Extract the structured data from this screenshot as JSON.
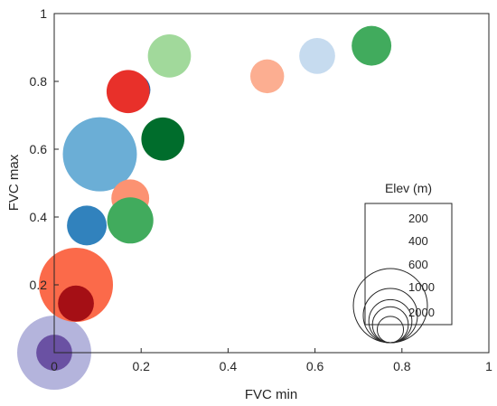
{
  "chart_data": {
    "type": "scatter",
    "title": "",
    "xlabel": "FVC min",
    "ylabel": "FVC max",
    "xlim": [
      0,
      1
    ],
    "ylim": [
      0,
      1
    ],
    "x_ticks": [
      "0",
      "0.2",
      "0.4",
      "0.6",
      "0.8",
      "1"
    ],
    "y_ticks": [
      "0.2",
      "0.4",
      "0.6",
      "0.8",
      "1"
    ],
    "grid": false,
    "points": [
      {
        "x": 0.0,
        "y": 0.0,
        "elev": 2000,
        "color": "#b4b4dc"
      },
      {
        "x": 0.0,
        "y": 0.0,
        "elev": 400,
        "color": "#6a51a3"
      },
      {
        "x": 0.05,
        "y": 0.2,
        "elev": 2000,
        "color": "#fb6a4a"
      },
      {
        "x": 0.05,
        "y": 0.145,
        "elev": 400,
        "color": "#a50f15"
      },
      {
        "x": 0.105,
        "y": 0.585,
        "elev": 2000,
        "color": "#6baed6"
      },
      {
        "x": 0.075,
        "y": 0.375,
        "elev": 500,
        "color": "#3182bd"
      },
      {
        "x": 0.185,
        "y": 0.775,
        "elev": 300,
        "color": "#2166ac"
      },
      {
        "x": 0.17,
        "y": 0.77,
        "elev": 600,
        "color": "#e8302a"
      },
      {
        "x": 0.175,
        "y": 0.455,
        "elev": 450,
        "color": "#fc9272"
      },
      {
        "x": 0.175,
        "y": 0.39,
        "elev": 700,
        "color": "#41ab5d"
      },
      {
        "x": 0.25,
        "y": 0.63,
        "elev": 600,
        "color": "#006d2c"
      },
      {
        "x": 0.265,
        "y": 0.875,
        "elev": 600,
        "color": "#a1d99b"
      },
      {
        "x": 0.49,
        "y": 0.815,
        "elev": 350,
        "color": "#fcae91"
      },
      {
        "x": 0.605,
        "y": 0.875,
        "elev": 400,
        "color": "#c6dbef"
      },
      {
        "x": 0.73,
        "y": 0.905,
        "elev": 500,
        "color": "#41ab5d"
      }
    ],
    "legend": {
      "title": "Elev (m)",
      "placement": "bottom-right",
      "entries": [
        {
          "label": "200",
          "elev": 200
        },
        {
          "label": "400",
          "elev": 400
        },
        {
          "label": "600",
          "elev": 600
        },
        {
          "label": "1000",
          "elev": 1000
        },
        {
          "label": "2000",
          "elev": 2000
        }
      ]
    }
  }
}
